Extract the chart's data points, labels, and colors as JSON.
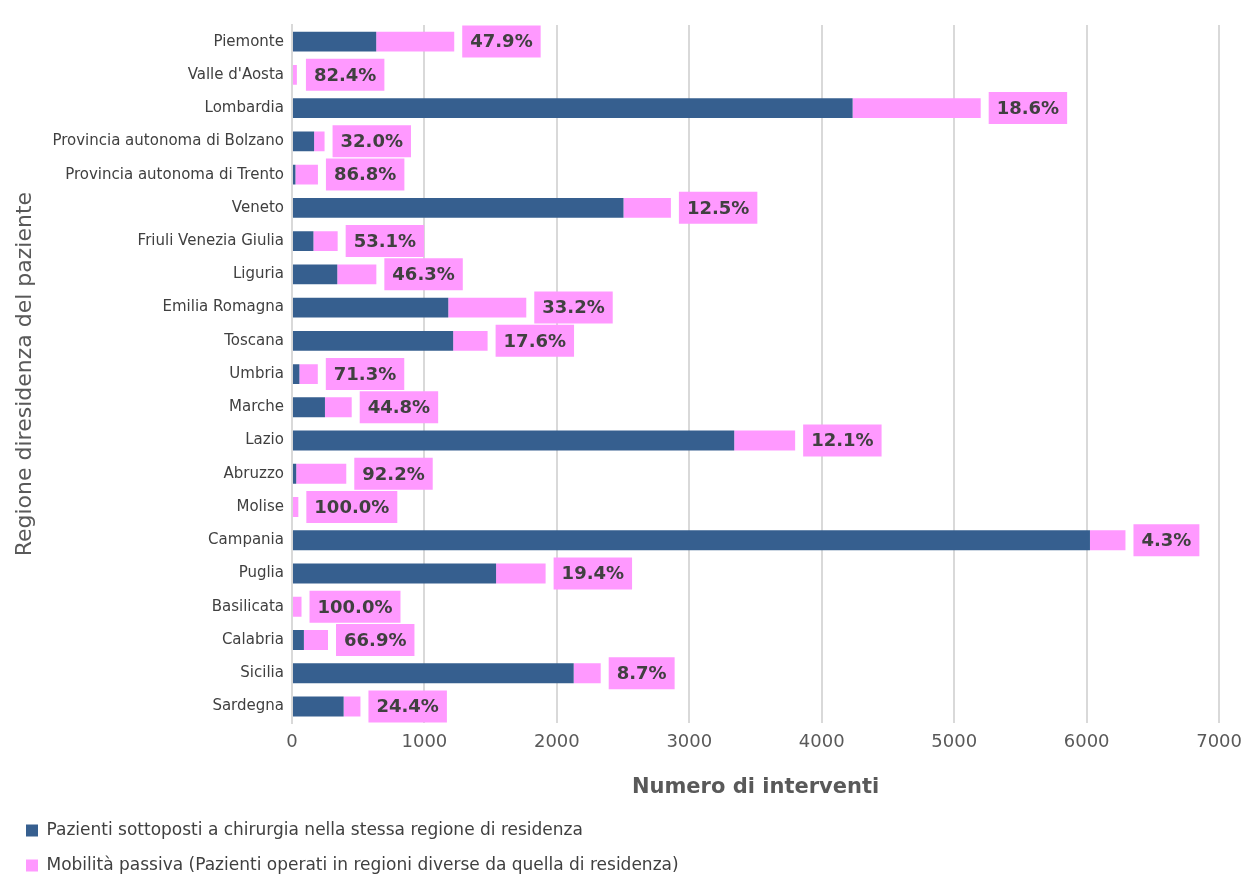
{
  "chart_data": {
    "type": "bar",
    "orientation": "horizontal",
    "stacked": true,
    "categories": [
      "Piemonte",
      "Valle d'Aosta",
      "Lombardia",
      "Provincia autonoma di Bolzano",
      "Provincia autonoma di Trento",
      "Veneto",
      "Friuli Venezia Giulia",
      "Liguria",
      "Emilia Romagna",
      "Toscana",
      "Umbria",
      "Marche",
      "Lazio",
      "Abruzzo",
      "Molise",
      "Campania",
      "Puglia",
      "Basilicata",
      "Calabria",
      "Sicilia",
      "Sardegna"
    ],
    "series": [
      {
        "name": "Pazienti sottoposti a chirurgia nella stessa regione di residenza",
        "color": "#365f8f",
        "values": [
          636,
          null,
          4233,
          167,
          26,
          2503,
          162,
          342,
          1180,
          1217,
          56,
          249,
          3339,
          32,
          0,
          6025,
          1541,
          0,
          90,
          2127,
          390
        ]
      },
      {
        "name": "Mobilità passiva (Pazienti operati in regioni diverse da quella di residenza)",
        "color": "#ff99ff",
        "values": [
          589,
          37,
          967,
          79,
          170,
          358,
          183,
          295,
          589,
          260,
          139,
          202,
          460,
          378,
          48,
          268,
          374,
          72,
          182,
          204,
          127
        ]
      }
    ],
    "annotations": [
      {
        "text": "47.9%",
        "x": 1225,
        "y": "Piemonte"
      },
      {
        "text": "82.4%",
        "x": 45,
        "y": "Valle d'Aosta"
      },
      {
        "text": "18.6%",
        "x": 5200,
        "y": "Lombardia"
      },
      {
        "text": "32.0%",
        "x": 246,
        "y": "Provincia autonoma di Bolzano"
      },
      {
        "text": "86.8%",
        "x": 196,
        "y": "Provincia autonoma di Trento"
      },
      {
        "text": "12.5%",
        "x": 2861,
        "y": "Veneto"
      },
      {
        "text": "53.1%",
        "x": 345,
        "y": "Friuli Venezia Giulia"
      },
      {
        "text": "46.3%",
        "x": 637,
        "y": "Liguria"
      },
      {
        "text": "33.2%",
        "x": 1769,
        "y": "Emilia Romagna"
      },
      {
        "text": "17.6%",
        "x": 1477,
        "y": "Toscana"
      },
      {
        "text": "71.3%",
        "x": 195,
        "y": "Umbria"
      },
      {
        "text": "44.8%",
        "x": 451,
        "y": "Marche"
      },
      {
        "text": "12.1%",
        "x": 3799,
        "y": "Lazio"
      },
      {
        "text": "92.2%",
        "x": 410,
        "y": "Abruzzo"
      },
      {
        "text": "100.0%",
        "x": 48,
        "y": "Molise"
      },
      {
        "text": "4.3%",
        "x": 6293,
        "y": "Campania"
      },
      {
        "text": "19.4%",
        "x": 1915,
        "y": "Puglia"
      },
      {
        "text": "100.0%",
        "x": 72,
        "y": "Basilicata"
      },
      {
        "text": "66.9%",
        "x": 272,
        "y": "Calabria"
      },
      {
        "text": "8.7%",
        "x": 2331,
        "y": "Sicilia"
      },
      {
        "text": "24.4%",
        "x": 517,
        "y": "Sardegna"
      }
    ],
    "xlabel": "Numero di interventi",
    "ylabel": "Regione diresidenza del paziente",
    "xlim": [
      0,
      7000
    ],
    "xticks": [
      0,
      1000,
      2000,
      3000,
      4000,
      5000,
      6000,
      7000
    ],
    "grid": "x",
    "legend": "bottom"
  }
}
